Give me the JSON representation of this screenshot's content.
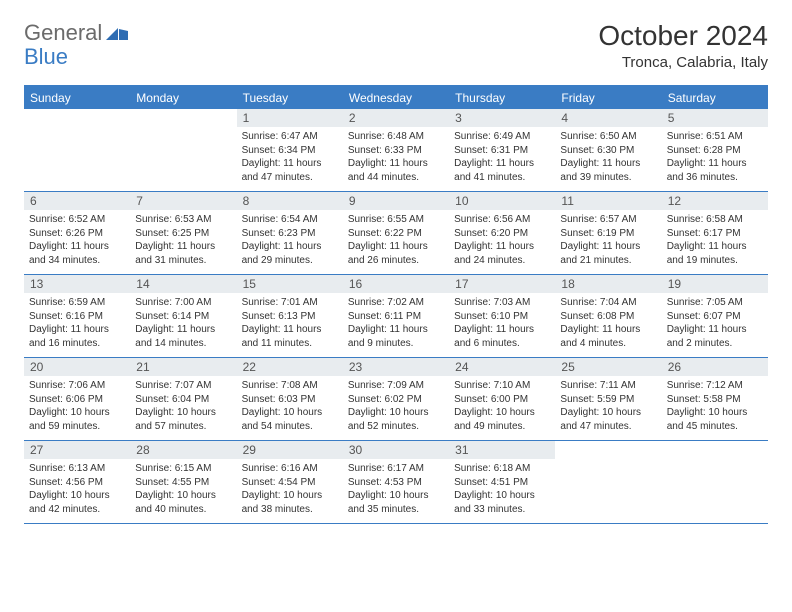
{
  "logo": {
    "text1": "General",
    "text2": "Blue"
  },
  "title": "October 2024",
  "location": "Tronca, Calabria, Italy",
  "day_headers": [
    "Sunday",
    "Monday",
    "Tuesday",
    "Wednesday",
    "Thursday",
    "Friday",
    "Saturday"
  ],
  "colors": {
    "header_bg": "#3a7cc4",
    "header_text": "#ffffff",
    "daynum_bg": "#e8ecef",
    "border": "#3a7cc4",
    "logo_gray": "#6b6b6b",
    "logo_blue": "#3a7cc4"
  },
  "weeks": [
    [
      null,
      null,
      {
        "n": "1",
        "sr": "Sunrise: 6:47 AM",
        "ss": "Sunset: 6:34 PM",
        "d1": "Daylight: 11 hours",
        "d2": "and 47 minutes."
      },
      {
        "n": "2",
        "sr": "Sunrise: 6:48 AM",
        "ss": "Sunset: 6:33 PM",
        "d1": "Daylight: 11 hours",
        "d2": "and 44 minutes."
      },
      {
        "n": "3",
        "sr": "Sunrise: 6:49 AM",
        "ss": "Sunset: 6:31 PM",
        "d1": "Daylight: 11 hours",
        "d2": "and 41 minutes."
      },
      {
        "n": "4",
        "sr": "Sunrise: 6:50 AM",
        "ss": "Sunset: 6:30 PM",
        "d1": "Daylight: 11 hours",
        "d2": "and 39 minutes."
      },
      {
        "n": "5",
        "sr": "Sunrise: 6:51 AM",
        "ss": "Sunset: 6:28 PM",
        "d1": "Daylight: 11 hours",
        "d2": "and 36 minutes."
      }
    ],
    [
      {
        "n": "6",
        "sr": "Sunrise: 6:52 AM",
        "ss": "Sunset: 6:26 PM",
        "d1": "Daylight: 11 hours",
        "d2": "and 34 minutes."
      },
      {
        "n": "7",
        "sr": "Sunrise: 6:53 AM",
        "ss": "Sunset: 6:25 PM",
        "d1": "Daylight: 11 hours",
        "d2": "and 31 minutes."
      },
      {
        "n": "8",
        "sr": "Sunrise: 6:54 AM",
        "ss": "Sunset: 6:23 PM",
        "d1": "Daylight: 11 hours",
        "d2": "and 29 minutes."
      },
      {
        "n": "9",
        "sr": "Sunrise: 6:55 AM",
        "ss": "Sunset: 6:22 PM",
        "d1": "Daylight: 11 hours",
        "d2": "and 26 minutes."
      },
      {
        "n": "10",
        "sr": "Sunrise: 6:56 AM",
        "ss": "Sunset: 6:20 PM",
        "d1": "Daylight: 11 hours",
        "d2": "and 24 minutes."
      },
      {
        "n": "11",
        "sr": "Sunrise: 6:57 AM",
        "ss": "Sunset: 6:19 PM",
        "d1": "Daylight: 11 hours",
        "d2": "and 21 minutes."
      },
      {
        "n": "12",
        "sr": "Sunrise: 6:58 AM",
        "ss": "Sunset: 6:17 PM",
        "d1": "Daylight: 11 hours",
        "d2": "and 19 minutes."
      }
    ],
    [
      {
        "n": "13",
        "sr": "Sunrise: 6:59 AM",
        "ss": "Sunset: 6:16 PM",
        "d1": "Daylight: 11 hours",
        "d2": "and 16 minutes."
      },
      {
        "n": "14",
        "sr": "Sunrise: 7:00 AM",
        "ss": "Sunset: 6:14 PM",
        "d1": "Daylight: 11 hours",
        "d2": "and 14 minutes."
      },
      {
        "n": "15",
        "sr": "Sunrise: 7:01 AM",
        "ss": "Sunset: 6:13 PM",
        "d1": "Daylight: 11 hours",
        "d2": "and 11 minutes."
      },
      {
        "n": "16",
        "sr": "Sunrise: 7:02 AM",
        "ss": "Sunset: 6:11 PM",
        "d1": "Daylight: 11 hours",
        "d2": "and 9 minutes."
      },
      {
        "n": "17",
        "sr": "Sunrise: 7:03 AM",
        "ss": "Sunset: 6:10 PM",
        "d1": "Daylight: 11 hours",
        "d2": "and 6 minutes."
      },
      {
        "n": "18",
        "sr": "Sunrise: 7:04 AM",
        "ss": "Sunset: 6:08 PM",
        "d1": "Daylight: 11 hours",
        "d2": "and 4 minutes."
      },
      {
        "n": "19",
        "sr": "Sunrise: 7:05 AM",
        "ss": "Sunset: 6:07 PM",
        "d1": "Daylight: 11 hours",
        "d2": "and 2 minutes."
      }
    ],
    [
      {
        "n": "20",
        "sr": "Sunrise: 7:06 AM",
        "ss": "Sunset: 6:06 PM",
        "d1": "Daylight: 10 hours",
        "d2": "and 59 minutes."
      },
      {
        "n": "21",
        "sr": "Sunrise: 7:07 AM",
        "ss": "Sunset: 6:04 PM",
        "d1": "Daylight: 10 hours",
        "d2": "and 57 minutes."
      },
      {
        "n": "22",
        "sr": "Sunrise: 7:08 AM",
        "ss": "Sunset: 6:03 PM",
        "d1": "Daylight: 10 hours",
        "d2": "and 54 minutes."
      },
      {
        "n": "23",
        "sr": "Sunrise: 7:09 AM",
        "ss": "Sunset: 6:02 PM",
        "d1": "Daylight: 10 hours",
        "d2": "and 52 minutes."
      },
      {
        "n": "24",
        "sr": "Sunrise: 7:10 AM",
        "ss": "Sunset: 6:00 PM",
        "d1": "Daylight: 10 hours",
        "d2": "and 49 minutes."
      },
      {
        "n": "25",
        "sr": "Sunrise: 7:11 AM",
        "ss": "Sunset: 5:59 PM",
        "d1": "Daylight: 10 hours",
        "d2": "and 47 minutes."
      },
      {
        "n": "26",
        "sr": "Sunrise: 7:12 AM",
        "ss": "Sunset: 5:58 PM",
        "d1": "Daylight: 10 hours",
        "d2": "and 45 minutes."
      }
    ],
    [
      {
        "n": "27",
        "sr": "Sunrise: 6:13 AM",
        "ss": "Sunset: 4:56 PM",
        "d1": "Daylight: 10 hours",
        "d2": "and 42 minutes."
      },
      {
        "n": "28",
        "sr": "Sunrise: 6:15 AM",
        "ss": "Sunset: 4:55 PM",
        "d1": "Daylight: 10 hours",
        "d2": "and 40 minutes."
      },
      {
        "n": "29",
        "sr": "Sunrise: 6:16 AM",
        "ss": "Sunset: 4:54 PM",
        "d1": "Daylight: 10 hours",
        "d2": "and 38 minutes."
      },
      {
        "n": "30",
        "sr": "Sunrise: 6:17 AM",
        "ss": "Sunset: 4:53 PM",
        "d1": "Daylight: 10 hours",
        "d2": "and 35 minutes."
      },
      {
        "n": "31",
        "sr": "Sunrise: 6:18 AM",
        "ss": "Sunset: 4:51 PM",
        "d1": "Daylight: 10 hours",
        "d2": "and 33 minutes."
      },
      null,
      null
    ]
  ]
}
